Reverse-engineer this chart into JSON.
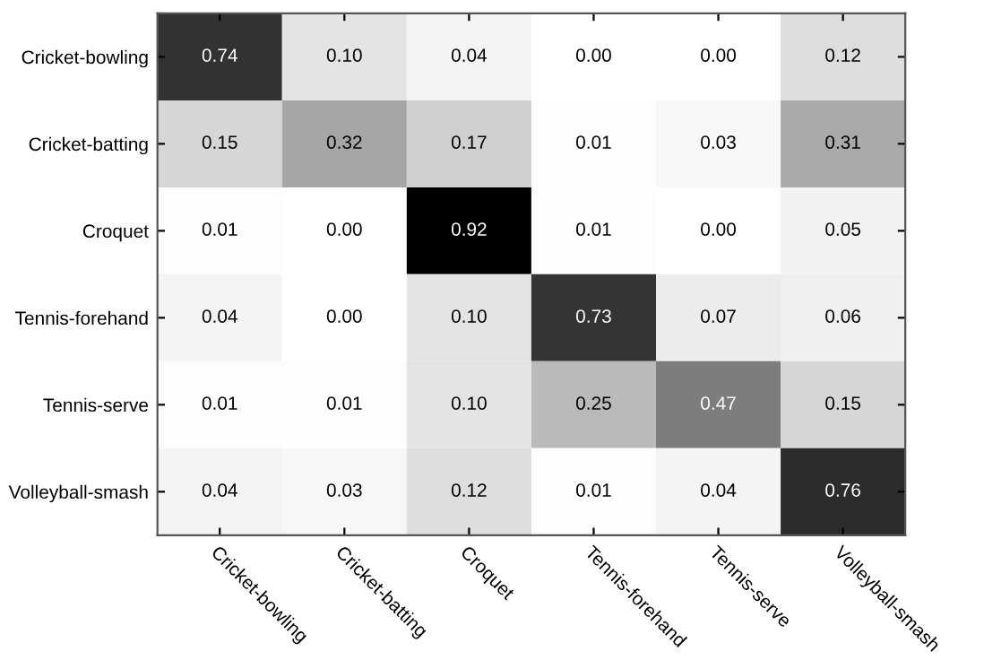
{
  "chart_data": {
    "type": "heatmap",
    "categories": [
      "Cricket-bowling",
      "Cricket-batting",
      "Croquet",
      "Tennis-forehand",
      "Tennis-serve",
      "Volleyball-smash"
    ],
    "y_categories": [
      "Cricket-bowling",
      "Cricket-batting",
      "Croquet",
      "Tennis-forehand",
      "Tennis-serve",
      "Volleyball-smash"
    ],
    "cells": [
      [
        0.74,
        0.1,
        0.04,
        0.0,
        0.0,
        0.12
      ],
      [
        0.15,
        0.32,
        0.17,
        0.01,
        0.03,
        0.31
      ],
      [
        0.01,
        0.0,
        0.92,
        0.01,
        0.0,
        0.05
      ],
      [
        0.04,
        0.0,
        0.1,
        0.73,
        0.07,
        0.06
      ],
      [
        0.01,
        0.01,
        0.1,
        0.25,
        0.47,
        0.15
      ],
      [
        0.04,
        0.03,
        0.12,
        0.01,
        0.04,
        0.76
      ]
    ],
    "cell_labels": [
      [
        "0.74",
        "0.10",
        "0.04",
        "0.00",
        "0.00",
        "0.12"
      ],
      [
        "0.15",
        "0.32",
        "0.17",
        "0.01",
        "0.03",
        "0.31"
      ],
      [
        "0.01",
        "0.00",
        "0.92",
        "0.01",
        "0.00",
        "0.05"
      ],
      [
        "0.04",
        "0.00",
        "0.10",
        "0.73",
        "0.07",
        "0.06"
      ],
      [
        "0.01",
        "0.01",
        "0.10",
        "0.25",
        "0.47",
        "0.15"
      ],
      [
        "0.04",
        "0.03",
        "0.12",
        "0.01",
        "0.04",
        "0.76"
      ]
    ],
    "data_labels": true,
    "grid": false
  }
}
